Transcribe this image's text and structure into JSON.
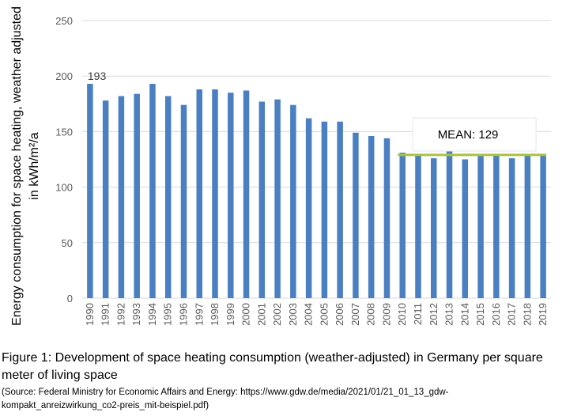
{
  "chart_data": {
    "type": "bar",
    "ylabel_line1": "Energy consumption for space heating, weather adjusted",
    "ylabel_line2": "in kWh/m²/a",
    "categories": [
      "1990",
      "1991",
      "1992",
      "1993",
      "1994",
      "1995",
      "1996",
      "1997",
      "1998",
      "1999",
      "2000",
      "2001",
      "2002",
      "2003",
      "2004",
      "2005",
      "2006",
      "2007",
      "2008",
      "2009",
      "2010",
      "2011",
      "2012",
      "2013",
      "2014",
      "2015",
      "2016",
      "2017",
      "2018",
      "2019"
    ],
    "values": [
      193,
      178,
      182,
      184,
      193,
      182,
      174,
      188,
      188,
      185,
      187,
      177,
      179,
      174,
      162,
      159,
      159,
      149,
      146,
      144,
      131,
      130,
      126,
      135,
      125,
      128,
      130,
      126,
      129,
      129
    ],
    "yticks": [
      "0",
      "50",
      "100",
      "150",
      "200",
      "250"
    ],
    "ylim": [
      0,
      250
    ],
    "grid": true,
    "annotation_first": "193",
    "mean_label": "MEAN: 129",
    "mean_value": 129,
    "mean_from": "2010",
    "mean_to": "2019",
    "bar_color": "#4a7fc1",
    "mean_line_color": "#a9c23f"
  },
  "caption": "Figure 1: Development of space heating consumption (weather-adjusted) in Germany per square meter of living space",
  "source": "(Source: Federal Ministry for Economic Affairs and Energy: https://www.gdw.de/media/2021/01/21_01_13_gdw-kompakt_anreizwirkung_co2-preis_mit-beispiel.pdf)"
}
